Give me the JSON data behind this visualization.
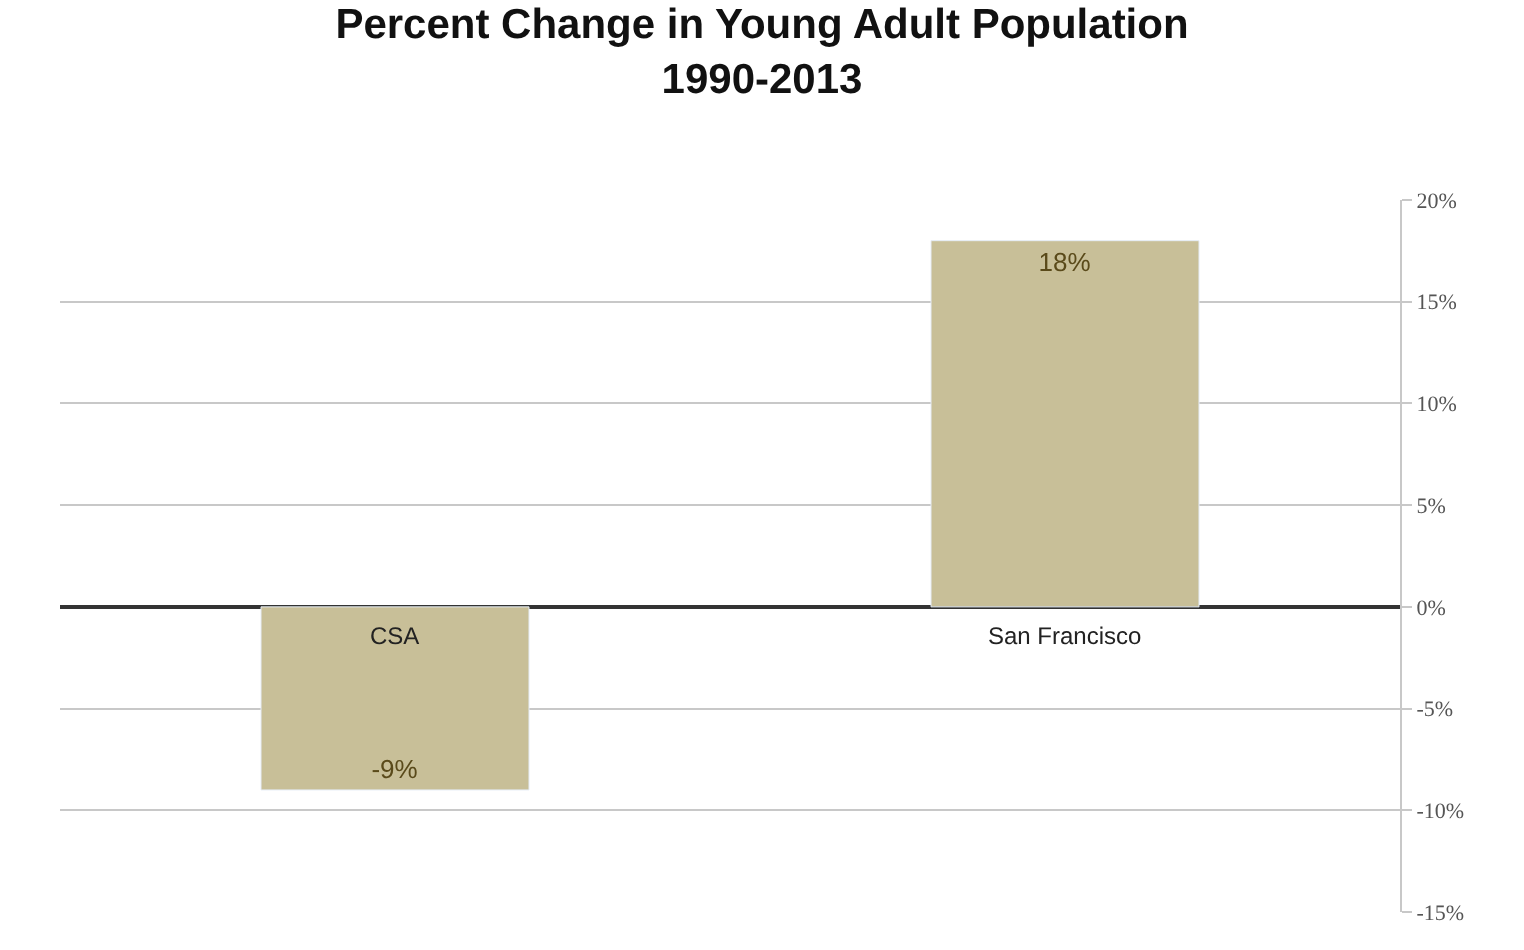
{
  "chart_data": {
    "type": "bar",
    "title": "Percent Change in Young Adult Population\n1990-2013",
    "categories": [
      "CSA",
      "San Francisco"
    ],
    "values": [
      -9,
      18
    ],
    "value_labels": [
      "-9%",
      "18%"
    ],
    "color": "#c8bf98",
    "ylim": [
      -15,
      20
    ],
    "yticks": [
      {
        "value": -15,
        "label": "-15%"
      },
      {
        "value": -10,
        "label": "-10%"
      },
      {
        "value": -5,
        "label": "-5%"
      },
      {
        "value": 0,
        "label": "0%"
      },
      {
        "value": 5,
        "label": "5%"
      },
      {
        "value": 10,
        "label": "10%"
      },
      {
        "value": 15,
        "label": "15%"
      },
      {
        "value": 20,
        "label": "20%"
      }
    ],
    "grid": "y",
    "legend": false
  }
}
